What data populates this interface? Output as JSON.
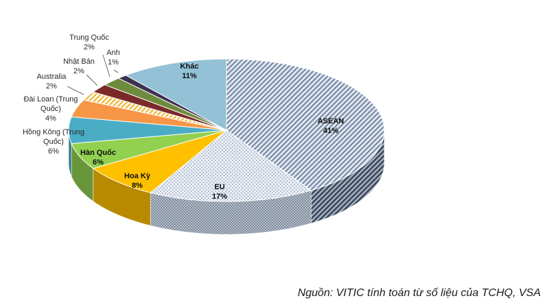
{
  "chart_data": {
    "type": "pie",
    "style": "3d-exploded-perspective",
    "unit": "%",
    "slices": [
      {
        "name": "ASEAN",
        "value": 41,
        "label": "41%",
        "color": "#8496b0",
        "pattern": "diagonal-hatch",
        "label_bold": true
      },
      {
        "name": "EU",
        "value": 17,
        "label": "17%",
        "color": "#d6dce5",
        "pattern": "dots",
        "label_bold": true
      },
      {
        "name": "Hoa Kỳ",
        "value": 8,
        "label": "8%",
        "color": "#ffc000",
        "pattern": "solid",
        "label_bold": true
      },
      {
        "name": "Hàn Quốc",
        "value": 6,
        "label": "6%",
        "color": "#92d050",
        "pattern": "solid",
        "label_bold": true
      },
      {
        "name": "Hồng Kông (Trung Quốc)",
        "value": 6,
        "label": "6%",
        "color": "#4bacc6",
        "pattern": "solid",
        "label_bold": false
      },
      {
        "name": "Đài Loan (Trung Quốc)",
        "value": 4,
        "label": "4%",
        "color": "#f79646",
        "pattern": "solid",
        "label_bold": false
      },
      {
        "name": "Australia",
        "value": 2,
        "label": "2%",
        "color": "#ffd966",
        "pattern": "diagonal-hatch",
        "label_bold": false
      },
      {
        "name": "Nhật Bản",
        "value": 2,
        "label": "2%",
        "color": "#7b2a2a",
        "pattern": "solid",
        "label_bold": false
      },
      {
        "name": "Trung Quốc",
        "value": 2,
        "label": "2%",
        "color": "#6e8b3d",
        "pattern": "solid",
        "label_bold": false
      },
      {
        "name": "Anh",
        "value": 1,
        "label": "1%",
        "color": "#403151",
        "pattern": "solid",
        "label_bold": false
      },
      {
        "name": "Khác",
        "value": 11,
        "label": "11%",
        "color": "#93c1d6",
        "pattern": "solid",
        "label_bold": true
      }
    ]
  },
  "source_note": "Nguồn: VITIC tính toán từ số liệu của TCHQ, VSA"
}
